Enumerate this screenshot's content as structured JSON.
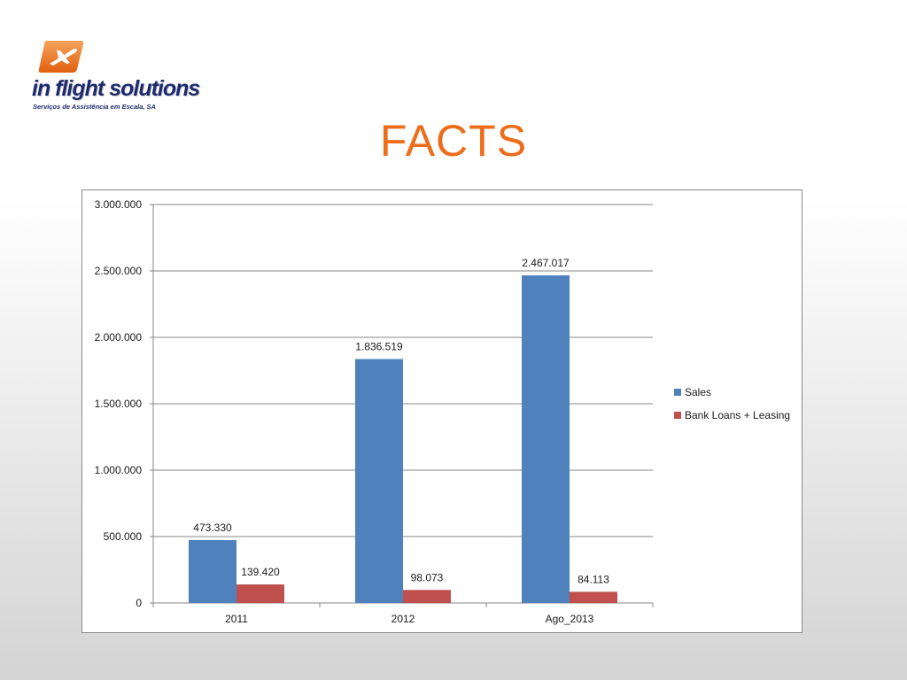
{
  "logo": {
    "name": "in flight solutions",
    "tagline": "Serviços de Assistência em Escala, SA",
    "accent_color": "#ee6d1b",
    "text_color": "#1e2a6e",
    "mark_icon": "airplane-icon"
  },
  "slide": {
    "title": "FACTS",
    "title_color": "#ee6d1b"
  },
  "chart_data": {
    "type": "bar",
    "categories": [
      "2011",
      "2012",
      "Ago_2013"
    ],
    "series": [
      {
        "name": "Sales",
        "values": [
          473330,
          1836519,
          2467017
        ],
        "labels": [
          "473.330",
          "1.836.519",
          "2.467.017"
        ],
        "color": "#4f81bd"
      },
      {
        "name": "Bank Loans + Leasing",
        "values": [
          139420,
          98073,
          84113
        ],
        "labels": [
          "139.420",
          "98.073",
          "84.113"
        ],
        "color": "#c0504d"
      }
    ],
    "ylim": [
      0,
      3000000
    ],
    "yticks": [
      0,
      500000,
      1000000,
      1500000,
      2000000,
      2500000,
      3000000
    ],
    "ytick_labels": [
      "0",
      "500.000",
      "1.000.000",
      "1.500.000",
      "2.000.000",
      "2.500.000",
      "3.000.000"
    ],
    "grid": true,
    "legend_position": "right"
  }
}
